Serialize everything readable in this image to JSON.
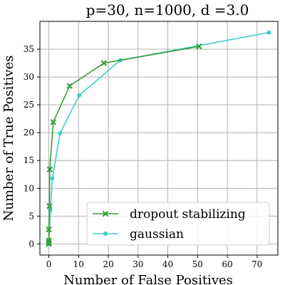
{
  "chart_data": {
    "type": "line",
    "title": "p=30, n=1000, d =3.0",
    "xlabel": "Number of False Positives",
    "ylabel": "Number of True Positives",
    "xlim": [
      -3,
      77
    ],
    "ylim": [
      -2,
      40
    ],
    "xticks": [
      0,
      10,
      20,
      30,
      40,
      50,
      60,
      70
    ],
    "yticks": [
      0,
      5,
      10,
      15,
      20,
      25,
      30,
      35
    ],
    "grid": true,
    "legend_position": "lower-right",
    "series": [
      {
        "name": "dropout stabilizing",
        "color": "#3a9e3a",
        "marker": "x",
        "x": [
          0,
          0,
          0,
          0,
          0.2,
          0.3,
          1.5,
          7,
          18.5,
          50.5
        ],
        "y": [
          0,
          0.2,
          0.6,
          2.6,
          6.8,
          13.4,
          21.9,
          28.4,
          32.5,
          35.5
        ]
      },
      {
        "name": "gaussian",
        "color": "#3ecdc9",
        "marker": "o",
        "x": [
          0,
          0,
          0.1,
          0.5,
          1.2,
          3.8,
          10.2,
          24,
          74
        ],
        "y": [
          0,
          0.2,
          0.6,
          6,
          11.8,
          19.9,
          26.7,
          33,
          38
        ]
      }
    ]
  }
}
